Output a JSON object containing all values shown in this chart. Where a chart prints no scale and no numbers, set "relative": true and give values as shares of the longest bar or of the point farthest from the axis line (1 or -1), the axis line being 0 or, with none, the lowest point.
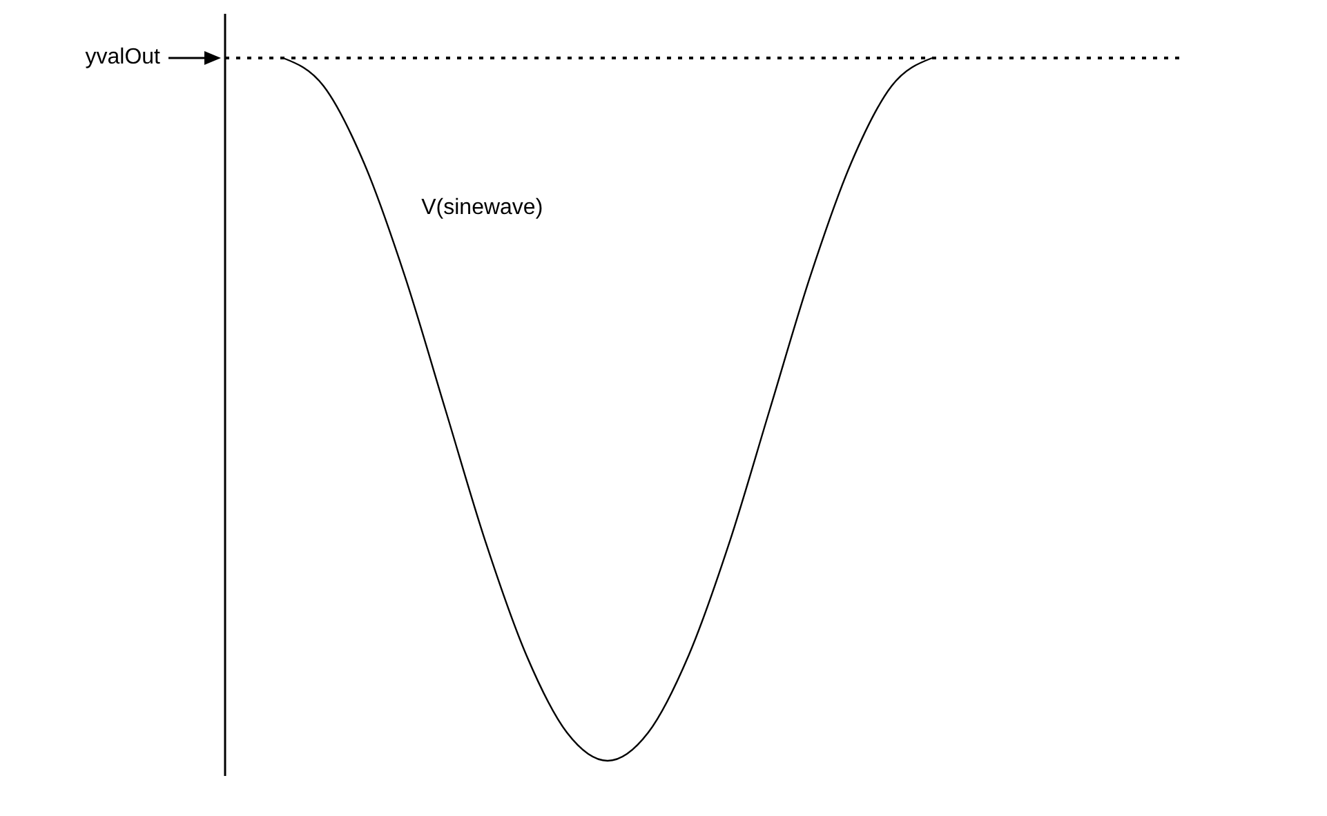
{
  "chart_data": {
    "type": "line",
    "relative": true,
    "categories": [
      null,
      null,
      null,
      null,
      null,
      null,
      null,
      null,
      null,
      null,
      null,
      null,
      null,
      null,
      null,
      null,
      null,
      null,
      null,
      null,
      null,
      null,
      null
    ],
    "series": [
      {
        "name": "V(sinewave)",
        "color": "#000000",
        "values": [
          1,
          0.96,
          0.85,
          0.69,
          0.5,
          0.31,
          0.15,
          0.04,
          0,
          0.04,
          0.15,
          0.31,
          0.5,
          0.69,
          0.85,
          0.96,
          1,
          null,
          null,
          null,
          null,
          null,
          null
        ]
      }
    ],
    "ref_lines": [
      {
        "axis": "y",
        "value": 1,
        "label": "yvalOut",
        "color": "#000000",
        "line_style": "dotted"
      }
    ],
    "marker": "none",
    "line_style": "solid"
  }
}
